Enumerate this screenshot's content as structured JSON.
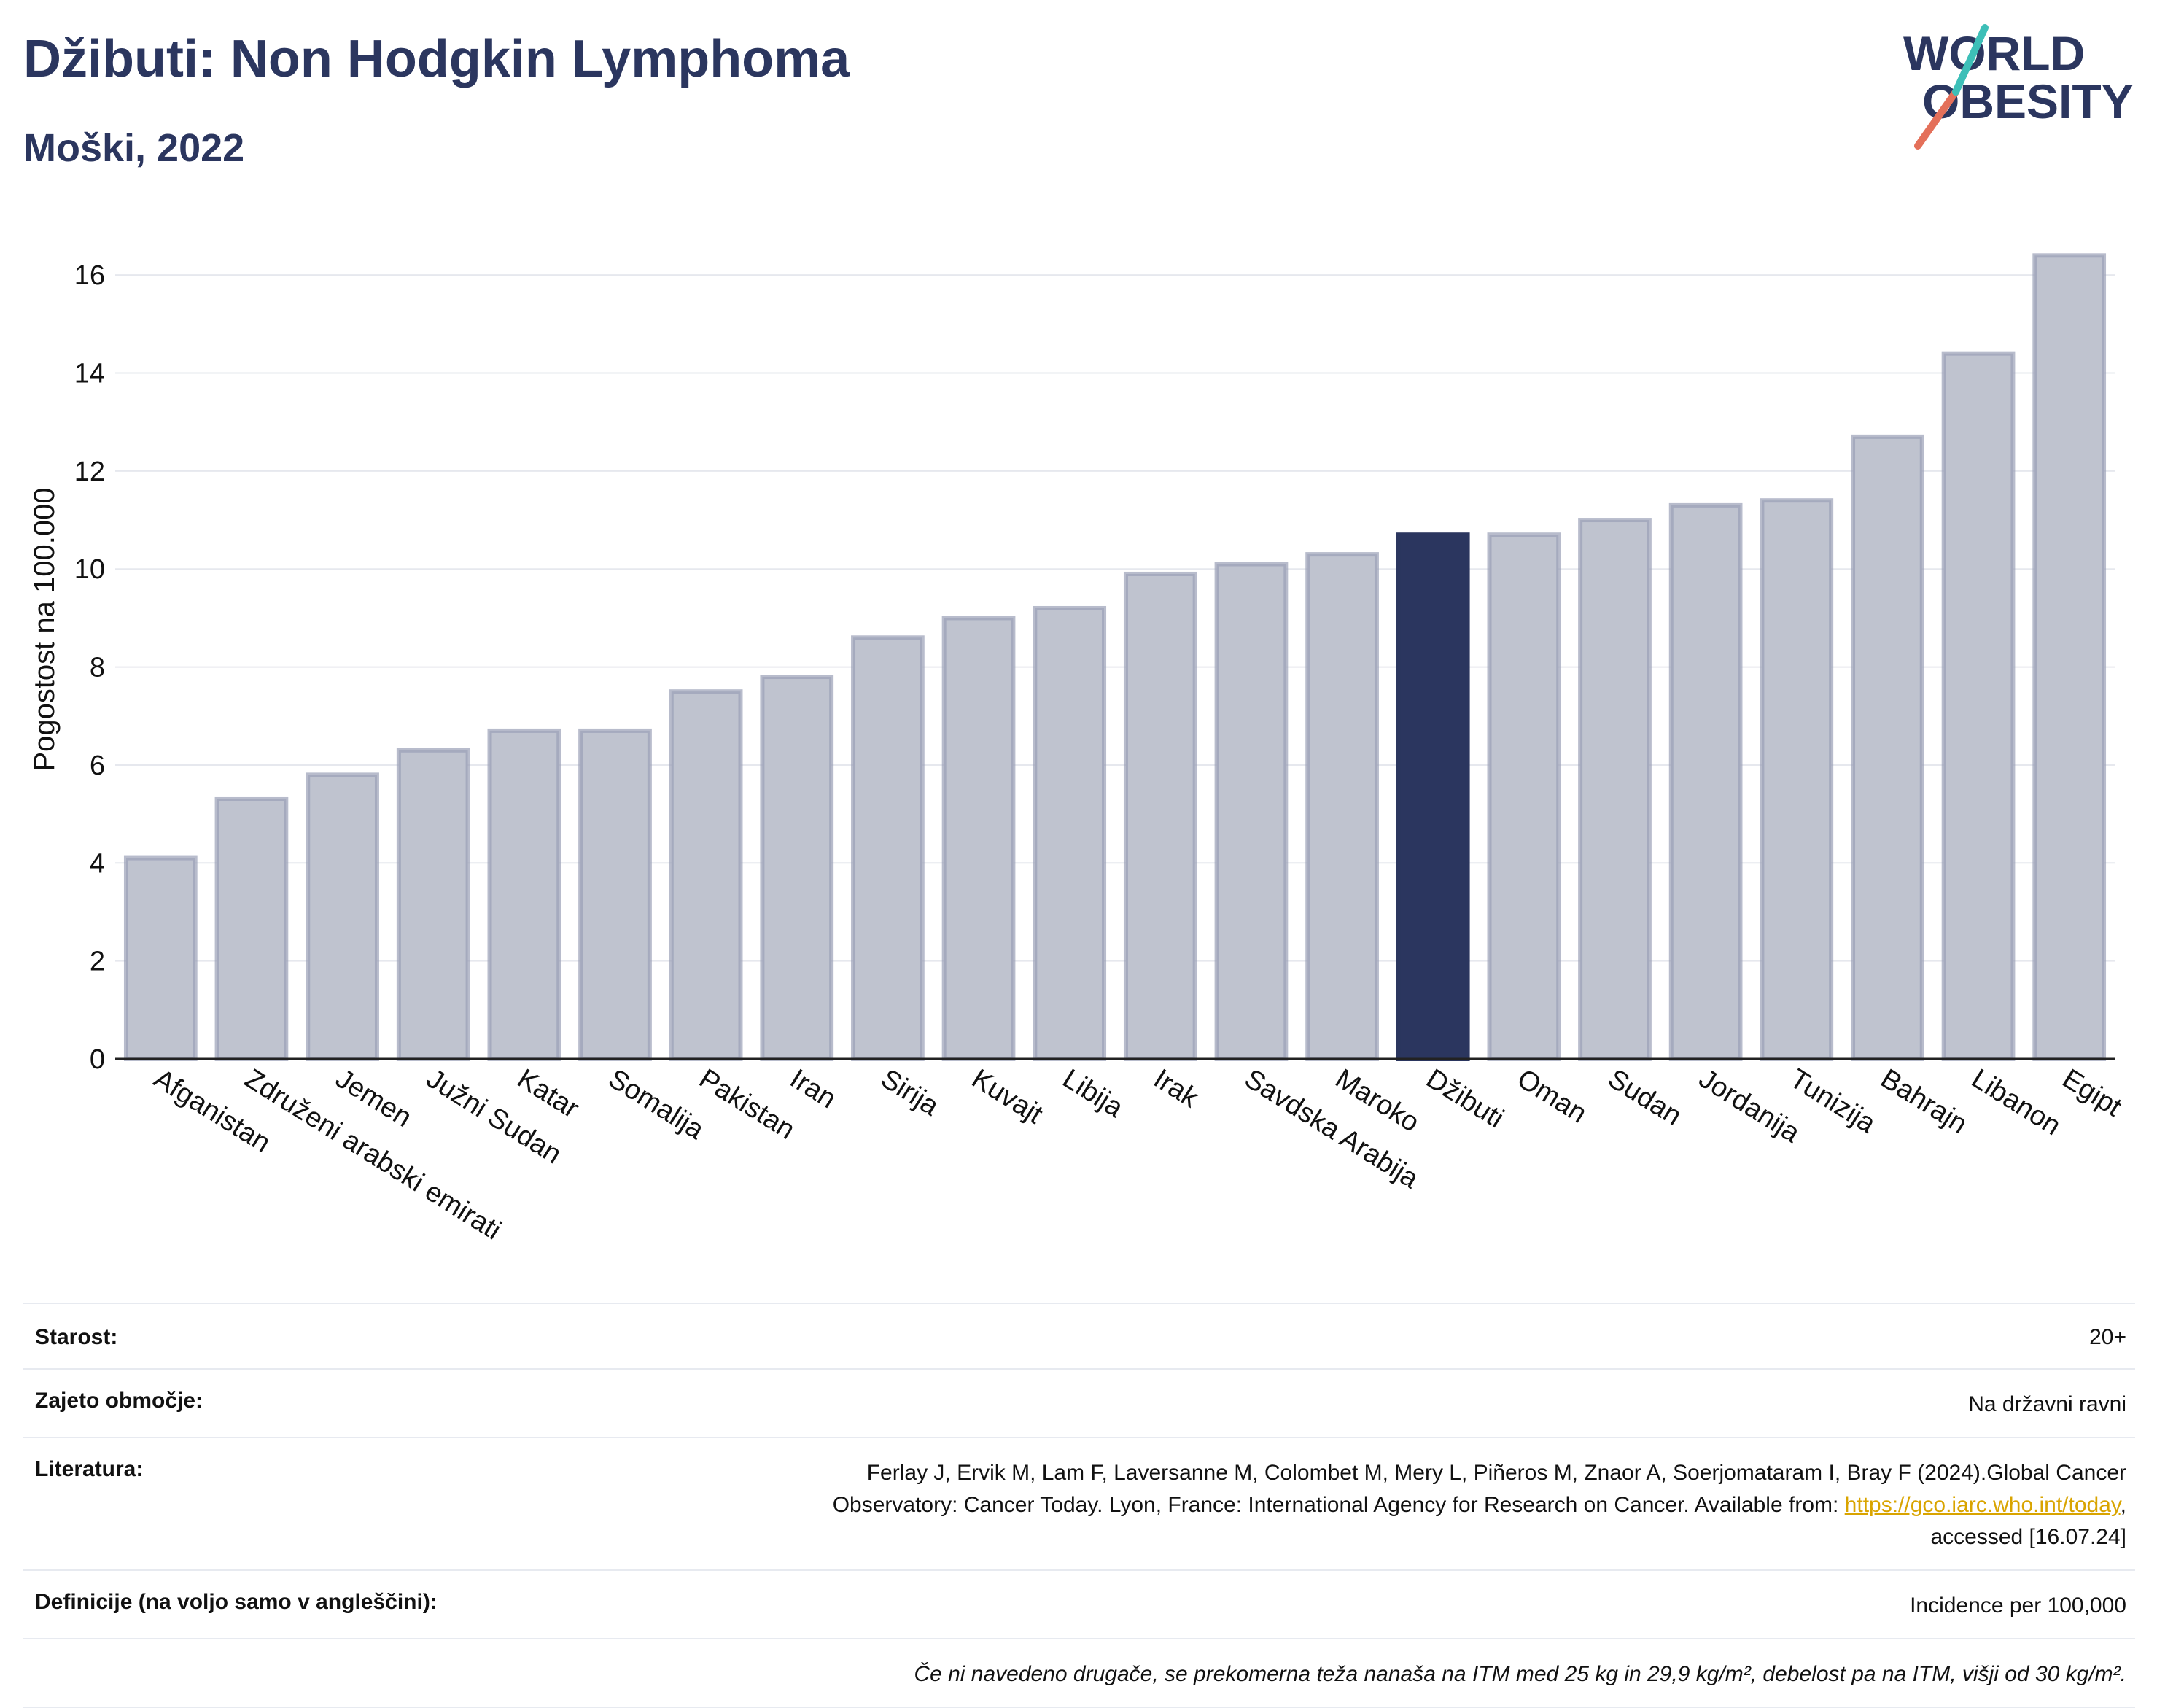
{
  "header": {
    "title": "Džibuti: Non Hodgkin Lymphoma",
    "subtitle": "Moški, 2022"
  },
  "logo": {
    "line1": "WORLD",
    "line2": "OBESITY"
  },
  "chart_data": {
    "type": "bar",
    "ylabel": "Pogostost na 100.000",
    "xlabel": "",
    "ylim": [
      0,
      17
    ],
    "yticks": [
      0,
      2,
      4,
      6,
      8,
      10,
      12,
      14,
      16
    ],
    "grid": true,
    "highlight": "Džibuti",
    "colors": {
      "bar": "#bfc3cf",
      "bar_edge": "#9aa0b6",
      "highlight": "#2b365f",
      "grid": "#e6e8ee"
    },
    "categories": [
      "Afganistan",
      "Združeni arabski emirati",
      "Jemen",
      "Južni Sudan",
      "Katar",
      "Somalija",
      "Pakistan",
      "Iran",
      "Sirija",
      "Kuvajt",
      "Libija",
      "Irak",
      "Savdska Arabija",
      "Maroko",
      "Džibuti",
      "Oman",
      "Sudan",
      "Jordanija",
      "Tunizija",
      "Bahrajn",
      "Libanon",
      "Egipt"
    ],
    "values": [
      4.1,
      5.3,
      5.8,
      6.3,
      6.7,
      6.7,
      7.5,
      7.8,
      8.6,
      9.0,
      9.2,
      9.9,
      10.1,
      10.3,
      10.7,
      10.7,
      11.0,
      11.3,
      11.4,
      12.7,
      14.4,
      16.4
    ]
  },
  "info": {
    "age_label": "Starost:",
    "age_value": "20+",
    "coverage_label": "Zajeto območje:",
    "coverage_value": "Na državni ravni",
    "reference_label": "Literatura:",
    "reference_text_1": "Ferlay J, Ervik M, Lam F, Laversanne M, Colombet M, Mery L, Piñeros M, Znaor A, Soerjomataram I, Bray F (2024).Global Cancer",
    "reference_text_2": "Observatory: Cancer Today. Lyon, France: International Agency for Research on Cancer. Available from: ",
    "reference_link": "https://gco.iarc.who.int/today",
    "reference_text_3": ",",
    "reference_text_4": "accessed [16.07.24]",
    "definitions_label": "Definicije (na voljo samo v angleščini):",
    "definitions_value": "Incidence per 100,000",
    "note": "Če ni navedeno drugače, se prekomerna teža nanaša na ITM med 25 kg in 29,9 kg/m², debelost pa na ITM, višji od 30 kg/m²."
  }
}
